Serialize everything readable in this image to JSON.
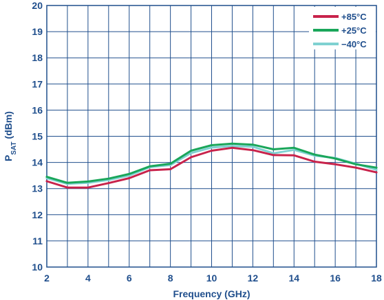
{
  "chart_data": {
    "type": "line",
    "xlabel": "Frequency (GHz)",
    "ylabel_main": "P",
    "ylabel_sub": "SAT",
    "ylabel_unit": " (dBm)",
    "xlim": [
      2,
      18
    ],
    "ylim": [
      10,
      20
    ],
    "x_ticks": [
      2,
      4,
      6,
      8,
      10,
      12,
      14,
      16,
      18
    ],
    "y_ticks": [
      10,
      11,
      12,
      13,
      14,
      15,
      16,
      17,
      18,
      19,
      20
    ],
    "x_grid_step": 1,
    "grid": true,
    "legend_position": "top-right",
    "series": [
      {
        "name": "+85°C",
        "color": "#c8234b",
        "x": [
          2,
          3,
          4,
          5,
          6,
          7,
          8,
          9,
          10,
          11,
          12,
          13,
          14,
          15,
          16,
          17,
          18
        ],
        "y": [
          13.28,
          13.04,
          13.04,
          13.21,
          13.4,
          13.7,
          13.74,
          14.2,
          14.45,
          14.56,
          14.47,
          14.28,
          14.27,
          14.03,
          13.93,
          13.8,
          13.62
        ]
      },
      {
        "name": "+25°C",
        "color": "#1aa65a",
        "x": [
          2,
          3,
          4,
          5,
          6,
          7,
          8,
          9,
          10,
          11,
          12,
          13,
          14,
          15,
          16,
          17,
          18
        ],
        "y": [
          13.45,
          13.22,
          13.27,
          13.38,
          13.56,
          13.85,
          13.95,
          14.45,
          14.66,
          14.72,
          14.68,
          14.5,
          14.56,
          14.3,
          14.15,
          13.93,
          13.8
        ]
      },
      {
        "name": "−40°C",
        "color": "#7fd1d1",
        "x": [
          2,
          3,
          4,
          5,
          6,
          7,
          8,
          9,
          10,
          11,
          12,
          13,
          14,
          15,
          16,
          17,
          18
        ],
        "y": [
          13.4,
          13.18,
          13.22,
          13.33,
          13.5,
          13.82,
          13.9,
          14.36,
          14.57,
          14.63,
          14.6,
          14.35,
          14.48,
          14.26,
          14.17,
          13.95,
          13.72
        ]
      }
    ]
  }
}
